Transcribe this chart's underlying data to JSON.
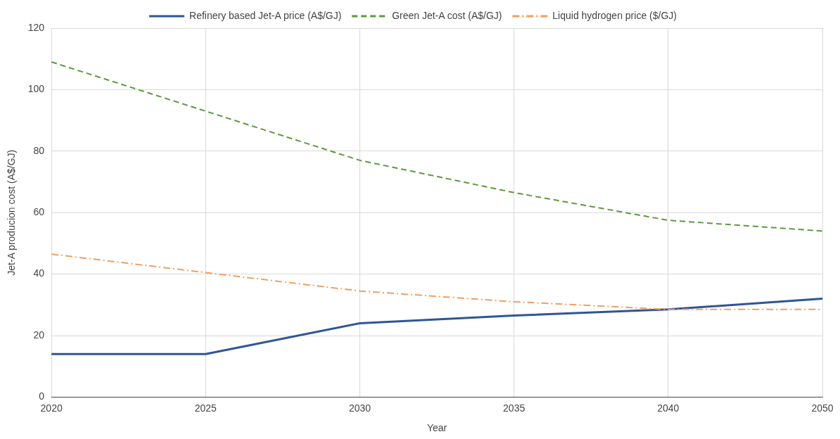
{
  "chart_data": {
    "type": "line",
    "xlabel": "Year",
    "ylabel": "Jet-A producion cost (A$/GJ)",
    "categories": [
      "2020",
      "2025",
      "2030",
      "2035",
      "2040",
      "2050"
    ],
    "ylim": [
      0,
      120
    ],
    "yticks": [
      0,
      20,
      40,
      60,
      80,
      100,
      120
    ],
    "grid": true,
    "legend": "top",
    "marker": "none",
    "series": [
      {
        "name": "Refinery based Jet-A price (A$/GJ)",
        "color": "#2f5597",
        "line_style": "solid",
        "values": [
          14,
          14,
          24,
          26.5,
          28.5,
          32
        ]
      },
      {
        "name": "Green Jet-A cost (A$/GJ)",
        "color": "#5b9a3c",
        "line_style": "dashed",
        "values": [
          109,
          93,
          77,
          66.5,
          57.5,
          54
        ]
      },
      {
        "name": "Liquid hydrogen price ($/GJ)",
        "color": "#f0a060",
        "line_style": "dashdot",
        "values": [
          46.5,
          40.5,
          34.5,
          31,
          28.5,
          28.5
        ]
      }
    ]
  }
}
